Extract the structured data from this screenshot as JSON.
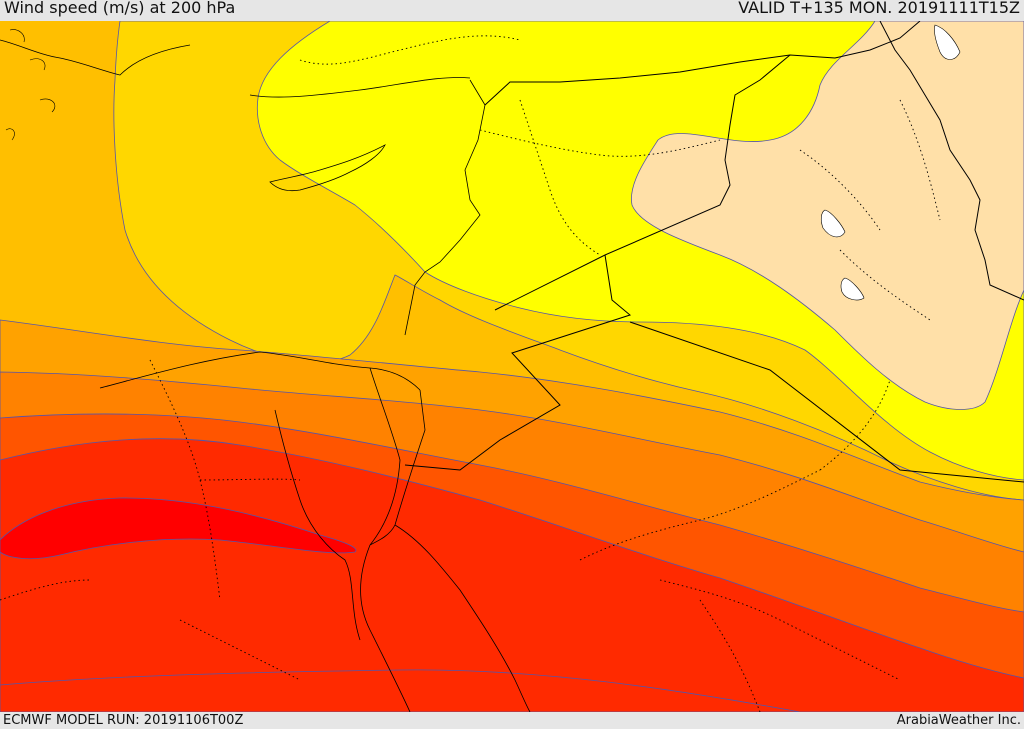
{
  "header": {
    "title": "Wind speed (m/s) at 200 hPa",
    "valid": "VALID T+135 MON. 20191111T15Z"
  },
  "footer": {
    "model_run": "ECMWF MODEL RUN: 20191106T00Z",
    "credit": "ArabiaWeather Inc."
  },
  "colors": {
    "band_light": "#ffe0a8",
    "band_yellow": "#ffff00",
    "band_gold": "#ffd700",
    "band_amber": "#ffbf00",
    "band_orange": "#ffa200",
    "band_dark_orange": "#ff8200",
    "band_red_orange": "#ff5500",
    "band_red": "#ff2a00",
    "band_max": "#ff0000",
    "contour": "#5555aa",
    "border": "#000000",
    "water": "#ffffff"
  }
}
